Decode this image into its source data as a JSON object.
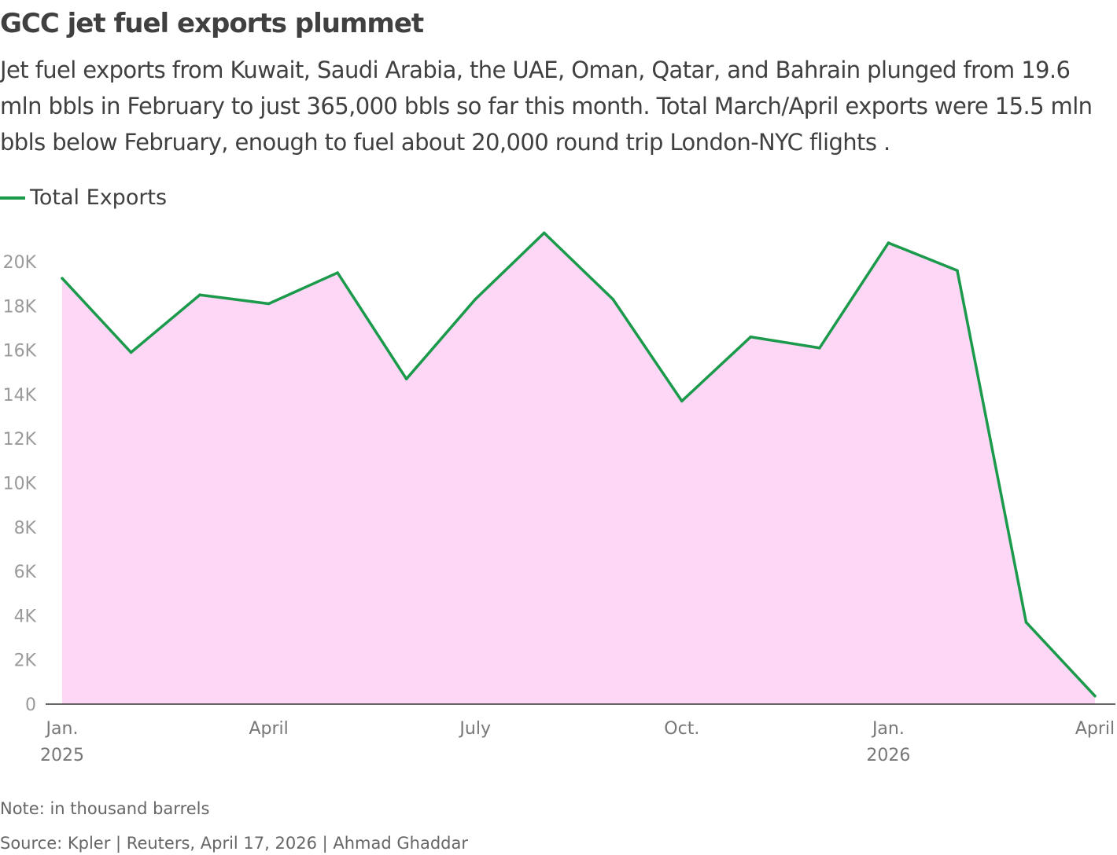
{
  "title": "GCC jet fuel exports plummet",
  "subtitle": "Jet fuel exports from Kuwait, Saudi Arabia, the UAE, Oman, Qatar, and Bahrain plunged from 19.6 mln bbls in February to just 365,000 bbls so far this month. Total March/April exports were 15.5 mln bbls below February, enough to fuel about 20,000 round trip London-NYC flights .",
  "note": "Note: in thousand barrels",
  "source": "Source: Kpler | Reuters, April 17, 2026 | Ahmad Ghaddar",
  "colors": {
    "line": "#1a9a4a",
    "fill": "#fdd7f5"
  },
  "chart_data": {
    "type": "area",
    "title": "GCC jet fuel exports plummet",
    "xlabel": "",
    "ylabel": "",
    "ylim": [
      0,
      20000
    ],
    "yticks": [
      0,
      2000,
      4000,
      6000,
      8000,
      10000,
      12000,
      14000,
      16000,
      18000,
      20000
    ],
    "ytick_labels": [
      "0",
      "2K",
      "4K",
      "6K",
      "8K",
      "10K",
      "12K",
      "14K",
      "16K",
      "18K",
      "20K"
    ],
    "x": [
      "2025-01",
      "2025-02",
      "2025-03",
      "2025-04",
      "2025-05",
      "2025-06",
      "2025-07",
      "2025-08",
      "2025-09",
      "2025-10",
      "2025-11",
      "2025-12",
      "2026-01",
      "2026-02",
      "2026-03",
      "2026-04"
    ],
    "xtick_labels": [
      {
        "index": 0,
        "line1": "Jan.",
        "line2": "2025"
      },
      {
        "index": 3,
        "line1": "April",
        "line2": ""
      },
      {
        "index": 6,
        "line1": "July",
        "line2": ""
      },
      {
        "index": 9,
        "line1": "Oct.",
        "line2": ""
      },
      {
        "index": 12,
        "line1": "Jan.",
        "line2": "2026"
      },
      {
        "index": 15,
        "line1": "April",
        "line2": ""
      }
    ],
    "legend": "top-left",
    "grid": false,
    "series": [
      {
        "name": "Total Exports",
        "values": [
          19250,
          15900,
          18500,
          18100,
          19500,
          14700,
          18300,
          21300,
          18300,
          13700,
          16600,
          16100,
          20850,
          19600,
          3700,
          365
        ]
      }
    ]
  }
}
